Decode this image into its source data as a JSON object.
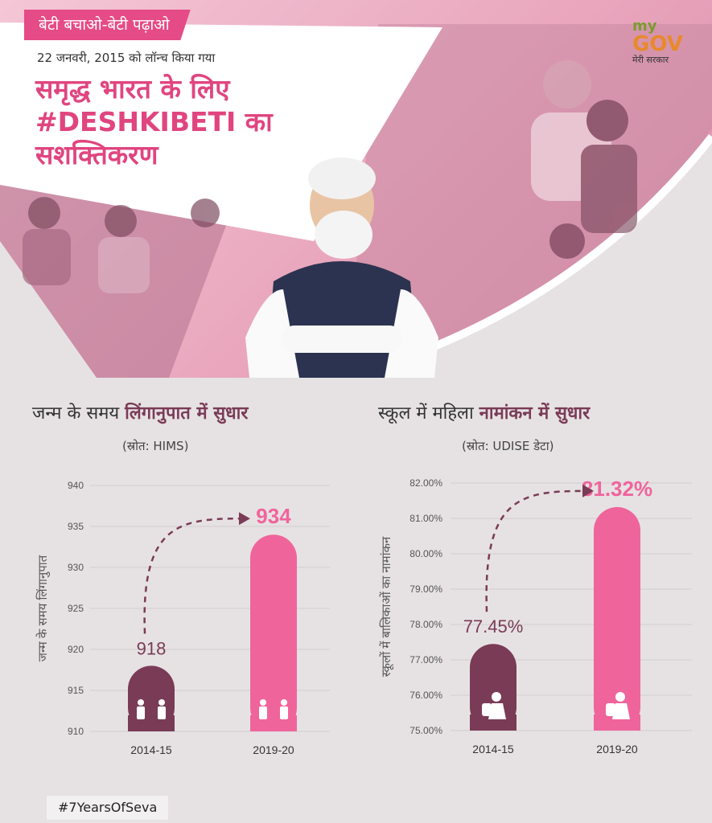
{
  "header": {
    "tag": "बेटी बचाओ-बेटी पढ़ाओ",
    "launch_line": "22 जनवरी, 2015 को लॉन्च किया गया",
    "headline_lines": [
      "समृद्ध भारत के लिए",
      "#DESHKIBETI का",
      "सशक्तिकरण"
    ],
    "accent_color": "#e54b86"
  },
  "logo": {
    "my": "my",
    "gov": "GOV",
    "sub": "मेरी सरकार"
  },
  "chart_data": [
    {
      "type": "bar",
      "title_plain": "जन्म के समय ",
      "title_bold": "लिंगानुपात में सुधार",
      "source": "(स्रोत: HIMS)",
      "ylabel": "जन्म के समय लिंगानुपात",
      "categories": [
        "2014-15",
        "2019-20"
      ],
      "values": [
        918,
        934
      ],
      "data_labels": [
        "918",
        "934"
      ],
      "ylim": [
        910,
        940
      ],
      "yticks": [
        "940",
        "935",
        "930",
        "925",
        "920",
        "915",
        "910"
      ],
      "colors": [
        "#7a3b56",
        "#f0649c"
      ],
      "grid": true,
      "icon": "boy-girl-icon"
    },
    {
      "type": "bar",
      "title_plain": "स्कूल में महिला ",
      "title_bold": "नामांकन में सुधार",
      "source": "(स्रोत: UDISE डेटा)",
      "ylabel": "स्कूलों में बालिकाओं का नामांकन",
      "categories": [
        "2014-15",
        "2019-20"
      ],
      "values": [
        77.45,
        81.32
      ],
      "data_labels": [
        "77.45%",
        "81.32%"
      ],
      "ylim": [
        75,
        82
      ],
      "yticks": [
        "82.00%",
        "81.00%",
        "80.00%",
        "79.00%",
        "78.00%",
        "77.00%",
        "76.00%",
        "75.00%"
      ],
      "colors": [
        "#7a3b56",
        "#f0649c"
      ],
      "grid": true,
      "icon": "schoolgirl-icon"
    }
  ],
  "footer": {
    "hashtag": "#7YearsOfSeva"
  }
}
